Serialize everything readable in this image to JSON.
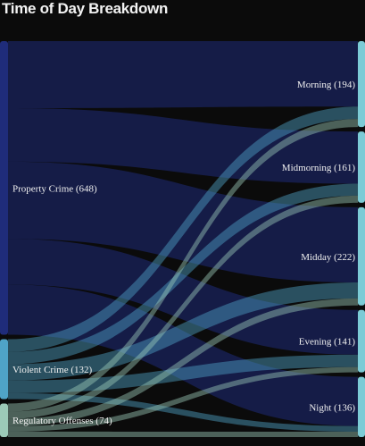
{
  "chart_data": {
    "type": "sankey",
    "title": "Time of Day Breakdown",
    "sources": [
      {
        "name": "Property Crime",
        "value": 648,
        "label": "Property Crime (648)",
        "color": "#1f2c7a"
      },
      {
        "name": "Violent Crime",
        "value": 132,
        "label": "Violent Crime (132)",
        "color": "#4fa3c7"
      },
      {
        "name": "Regulatory Offenses",
        "value": 74,
        "label": "Regulatory Offenses (74)",
        "color": "#9ccab8"
      }
    ],
    "targets": [
      {
        "name": "Morning",
        "value": 194,
        "label": "Morning (194)",
        "color": "#7ccbd6"
      },
      {
        "name": "Midmorning",
        "value": 161,
        "label": "Midmorning (161)",
        "color": "#7ccbd6"
      },
      {
        "name": "Midday",
        "value": 222,
        "label": "Midday (222)",
        "color": "#7ccbd6"
      },
      {
        "name": "Evening",
        "value": 141,
        "label": "Evening (141)",
        "color": "#7ccbd6"
      },
      {
        "name": "Night",
        "value": 136,
        "label": "Night (136)",
        "color": "#7ccbd6"
      }
    ],
    "links": [
      {
        "source": "Property Crime",
        "target": "Morning",
        "value": 148
      },
      {
        "source": "Property Crime",
        "target": "Midmorning",
        "value": 118
      },
      {
        "source": "Property Crime",
        "target": "Midday",
        "value": 170
      },
      {
        "source": "Property Crime",
        "target": "Evening",
        "value": 101
      },
      {
        "source": "Property Crime",
        "target": "Night",
        "value": 111
      },
      {
        "source": "Violent Crime",
        "target": "Morning",
        "value": 28
      },
      {
        "source": "Violent Crime",
        "target": "Midmorning",
        "value": 27
      },
      {
        "source": "Violent Crime",
        "target": "Midday",
        "value": 36
      },
      {
        "source": "Violent Crime",
        "target": "Evening",
        "value": 28
      },
      {
        "source": "Violent Crime",
        "target": "Night",
        "value": 13
      },
      {
        "source": "Regulatory Offenses",
        "target": "Morning",
        "value": 18
      },
      {
        "source": "Regulatory Offenses",
        "target": "Midmorning",
        "value": 16
      },
      {
        "source": "Regulatory Offenses",
        "target": "Midday",
        "value": 16
      },
      {
        "source": "Regulatory Offenses",
        "target": "Evening",
        "value": 12
      },
      {
        "source": "Regulatory Offenses",
        "target": "Night",
        "value": 12
      }
    ]
  }
}
